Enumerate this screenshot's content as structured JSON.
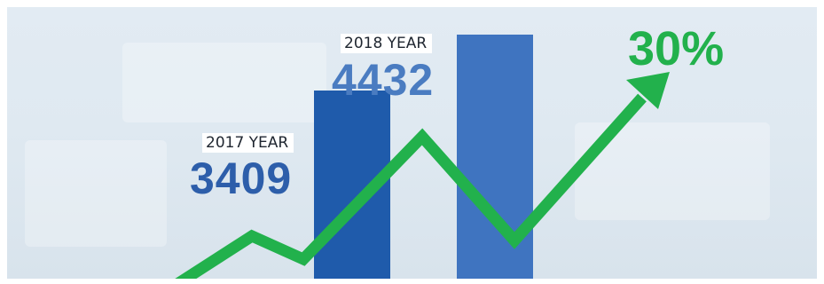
{
  "chart_data": {
    "type": "bar",
    "categories": [
      "2017 YEAR",
      "2018 YEAR"
    ],
    "values": [
      3409,
      4432
    ],
    "category_labels": [
      "2017 YEAR",
      "2018 YEAR"
    ],
    "value_labels": [
      "3409",
      "4432"
    ],
    "growth_label": "30%",
    "trend_line": "rising zigzag arrow",
    "colors": {
      "bar_2017": "#1f5bab",
      "bar_2018": "#3f74c0",
      "value_text_2017": "#2d5eaa",
      "value_text_2018": "#4a7cc1",
      "trend": "#22b14c",
      "background": "#dfe9f1"
    }
  }
}
